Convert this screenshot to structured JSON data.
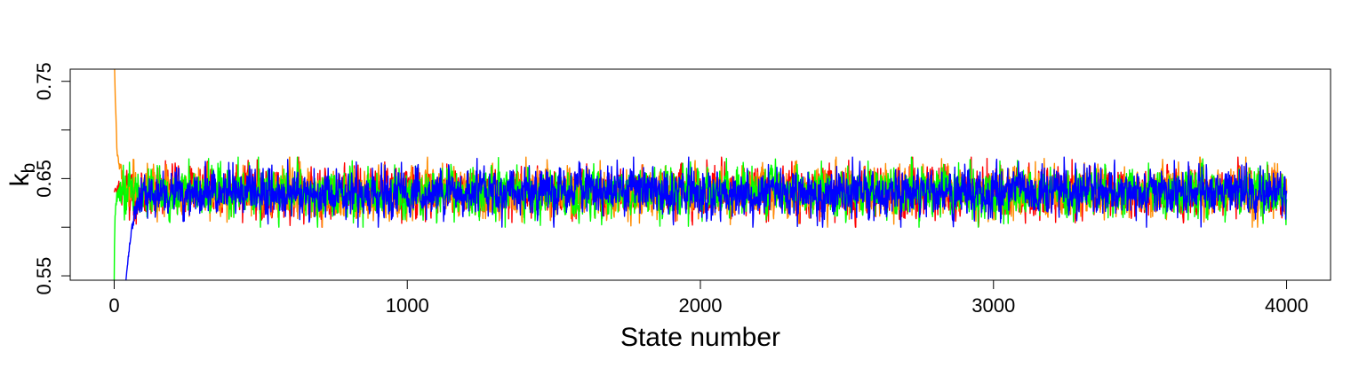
{
  "chart_data": {
    "type": "line",
    "title": "",
    "xlabel": "State number",
    "ylabel_main": "k",
    "ylabel_sub": "b",
    "xlim": [
      -150,
      4150
    ],
    "ylim": [
      0.5455,
      0.7625
    ],
    "xticks": [
      0,
      1000,
      2000,
      3000,
      4000
    ],
    "xtick_labels": [
      "0",
      "1000",
      "2000",
      "3000",
      "4000"
    ],
    "yticks": [
      0.55,
      0.6,
      0.65,
      0.7,
      0.75
    ],
    "ytick_labels": [
      "0.55",
      "",
      "0.65",
      "",
      "0.75"
    ],
    "grid": false,
    "legend": "none",
    "n_states": 4000,
    "stationary_mean": 0.636,
    "stationary_range": [
      0.6,
      0.672
    ],
    "series": [
      {
        "color": "#ff0000",
        "start": 0.636,
        "burn_in": [
          [
            0,
            0.636
          ],
          [
            4,
            0.64
          ],
          [
            60,
            0.636
          ]
        ]
      },
      {
        "color": "#ff8c00",
        "start": 0.78,
        "burn_in": [
          [
            0,
            0.78
          ],
          [
            4,
            0.73
          ],
          [
            10,
            0.68
          ],
          [
            18,
            0.655
          ],
          [
            40,
            0.64
          ],
          [
            80,
            0.636
          ]
        ]
      },
      {
        "color": "#00ff00",
        "start": 0.545,
        "burn_in": [
          [
            0,
            0.545
          ],
          [
            1,
            0.58
          ],
          [
            3,
            0.61
          ],
          [
            10,
            0.63
          ],
          [
            40,
            0.636
          ]
        ]
      },
      {
        "color": "#0000ff",
        "start": 0.545,
        "burn_in": [
          [
            40,
            0.545
          ],
          [
            50,
            0.575
          ],
          [
            62,
            0.6
          ],
          [
            75,
            0.62
          ],
          [
            95,
            0.632
          ],
          [
            130,
            0.636
          ]
        ]
      }
    ]
  }
}
